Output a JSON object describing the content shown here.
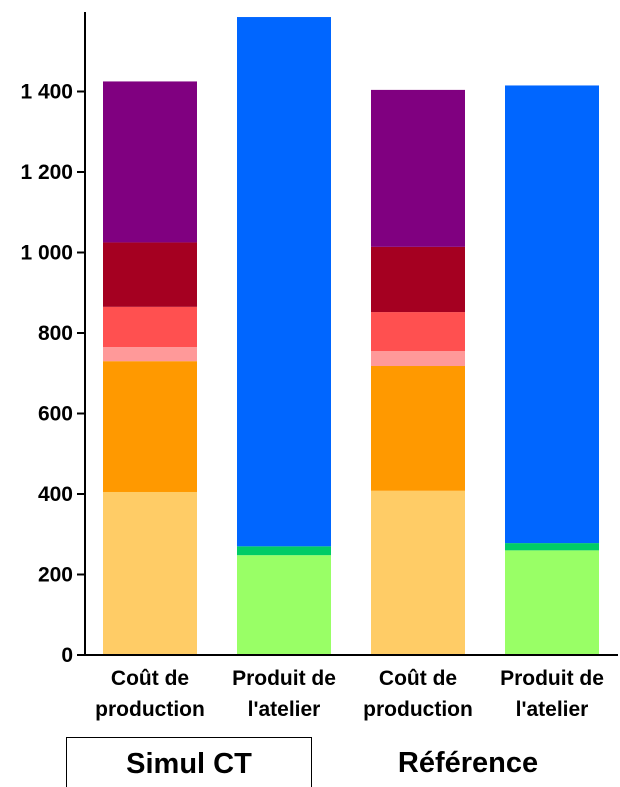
{
  "chart_data": {
    "type": "bar",
    "stacked": true,
    "categories": [
      [
        "Coût de",
        "production"
      ],
      [
        "Produit de",
        "l'atelier"
      ],
      [
        "Coût de",
        "production"
      ],
      [
        "Produit de",
        "l'atelier"
      ]
    ],
    "groups": [
      {
        "label": "Simul CT",
        "categories": [
          0,
          1
        ]
      },
      {
        "label": "Référence",
        "categories": [
          2,
          3
        ]
      }
    ],
    "ylim": [
      0,
      1600
    ],
    "yticks": [
      0,
      200,
      400,
      600,
      800,
      1000,
      1200,
      1400
    ],
    "ytick_labels": [
      "0",
      "200",
      "400",
      "600",
      "800",
      "1 000",
      "1 200",
      "1 400"
    ],
    "grid": false,
    "series": [
      {
        "color": "#FFCC66",
        "values": [
          405,
          0,
          408,
          0
        ]
      },
      {
        "color": "#FF9900",
        "values": [
          325,
          0,
          310,
          0
        ]
      },
      {
        "color": "#FF9999",
        "values": [
          35,
          0,
          37,
          0
        ]
      },
      {
        "color": "#FF5050",
        "values": [
          100,
          0,
          97,
          0
        ]
      },
      {
        "color": "#A50021",
        "values": [
          160,
          0,
          162,
          0
        ]
      },
      {
        "color": "#800080",
        "values": [
          400,
          0,
          390,
          0
        ]
      },
      {
        "color": "#99FF66",
        "values": [
          0,
          248,
          0,
          260
        ]
      },
      {
        "color": "#00CC66",
        "values": [
          0,
          22,
          0,
          18
        ]
      },
      {
        "color": "#0066FF",
        "values": [
          0,
          1315,
          0,
          1137
        ]
      }
    ]
  }
}
